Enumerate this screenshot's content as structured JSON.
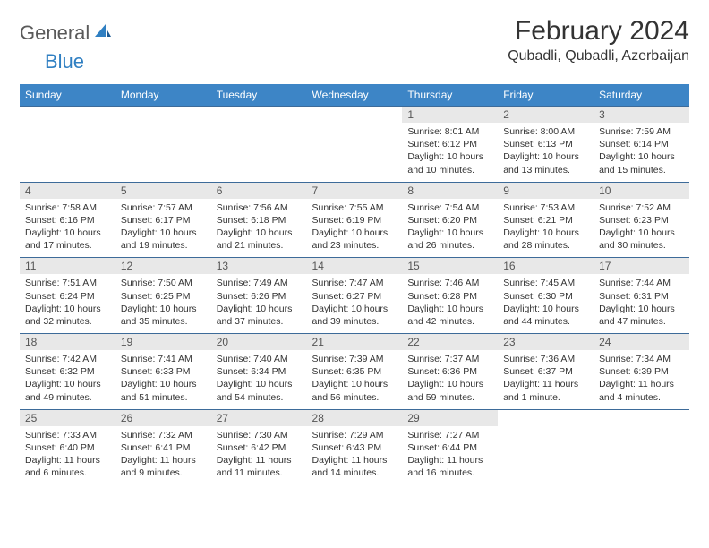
{
  "brand": {
    "part1": "General",
    "part2": "Blue"
  },
  "title": "February 2024",
  "location": "Qubadli, Qubadli, Azerbaijan",
  "colors": {
    "header_bg": "#3d85c6",
    "border": "#3d6b99",
    "daynum_bg": "#e8e8e8",
    "brand_blue": "#2f7fc2",
    "brand_gray": "#5a5a5a"
  },
  "weekdays": [
    "Sunday",
    "Monday",
    "Tuesday",
    "Wednesday",
    "Thursday",
    "Friday",
    "Saturday"
  ],
  "weeks": [
    [
      null,
      null,
      null,
      null,
      {
        "n": "1",
        "sr": "8:01 AM",
        "ss": "6:12 PM",
        "dl": "10 hours and 10 minutes."
      },
      {
        "n": "2",
        "sr": "8:00 AM",
        "ss": "6:13 PM",
        "dl": "10 hours and 13 minutes."
      },
      {
        "n": "3",
        "sr": "7:59 AM",
        "ss": "6:14 PM",
        "dl": "10 hours and 15 minutes."
      }
    ],
    [
      {
        "n": "4",
        "sr": "7:58 AM",
        "ss": "6:16 PM",
        "dl": "10 hours and 17 minutes."
      },
      {
        "n": "5",
        "sr": "7:57 AM",
        "ss": "6:17 PM",
        "dl": "10 hours and 19 minutes."
      },
      {
        "n": "6",
        "sr": "7:56 AM",
        "ss": "6:18 PM",
        "dl": "10 hours and 21 minutes."
      },
      {
        "n": "7",
        "sr": "7:55 AM",
        "ss": "6:19 PM",
        "dl": "10 hours and 23 minutes."
      },
      {
        "n": "8",
        "sr": "7:54 AM",
        "ss": "6:20 PM",
        "dl": "10 hours and 26 minutes."
      },
      {
        "n": "9",
        "sr": "7:53 AM",
        "ss": "6:21 PM",
        "dl": "10 hours and 28 minutes."
      },
      {
        "n": "10",
        "sr": "7:52 AM",
        "ss": "6:23 PM",
        "dl": "10 hours and 30 minutes."
      }
    ],
    [
      {
        "n": "11",
        "sr": "7:51 AM",
        "ss": "6:24 PM",
        "dl": "10 hours and 32 minutes."
      },
      {
        "n": "12",
        "sr": "7:50 AM",
        "ss": "6:25 PM",
        "dl": "10 hours and 35 minutes."
      },
      {
        "n": "13",
        "sr": "7:49 AM",
        "ss": "6:26 PM",
        "dl": "10 hours and 37 minutes."
      },
      {
        "n": "14",
        "sr": "7:47 AM",
        "ss": "6:27 PM",
        "dl": "10 hours and 39 minutes."
      },
      {
        "n": "15",
        "sr": "7:46 AM",
        "ss": "6:28 PM",
        "dl": "10 hours and 42 minutes."
      },
      {
        "n": "16",
        "sr": "7:45 AM",
        "ss": "6:30 PM",
        "dl": "10 hours and 44 minutes."
      },
      {
        "n": "17",
        "sr": "7:44 AM",
        "ss": "6:31 PM",
        "dl": "10 hours and 47 minutes."
      }
    ],
    [
      {
        "n": "18",
        "sr": "7:42 AM",
        "ss": "6:32 PM",
        "dl": "10 hours and 49 minutes."
      },
      {
        "n": "19",
        "sr": "7:41 AM",
        "ss": "6:33 PM",
        "dl": "10 hours and 51 minutes."
      },
      {
        "n": "20",
        "sr": "7:40 AM",
        "ss": "6:34 PM",
        "dl": "10 hours and 54 minutes."
      },
      {
        "n": "21",
        "sr": "7:39 AM",
        "ss": "6:35 PM",
        "dl": "10 hours and 56 minutes."
      },
      {
        "n": "22",
        "sr": "7:37 AM",
        "ss": "6:36 PM",
        "dl": "10 hours and 59 minutes."
      },
      {
        "n": "23",
        "sr": "7:36 AM",
        "ss": "6:37 PM",
        "dl": "11 hours and 1 minute."
      },
      {
        "n": "24",
        "sr": "7:34 AM",
        "ss": "6:39 PM",
        "dl": "11 hours and 4 minutes."
      }
    ],
    [
      {
        "n": "25",
        "sr": "7:33 AM",
        "ss": "6:40 PM",
        "dl": "11 hours and 6 minutes."
      },
      {
        "n": "26",
        "sr": "7:32 AM",
        "ss": "6:41 PM",
        "dl": "11 hours and 9 minutes."
      },
      {
        "n": "27",
        "sr": "7:30 AM",
        "ss": "6:42 PM",
        "dl": "11 hours and 11 minutes."
      },
      {
        "n": "28",
        "sr": "7:29 AM",
        "ss": "6:43 PM",
        "dl": "11 hours and 14 minutes."
      },
      {
        "n": "29",
        "sr": "7:27 AM",
        "ss": "6:44 PM",
        "dl": "11 hours and 16 minutes."
      },
      null,
      null
    ]
  ],
  "labels": {
    "sunrise": "Sunrise: ",
    "sunset": "Sunset: ",
    "daylight": "Daylight: "
  }
}
